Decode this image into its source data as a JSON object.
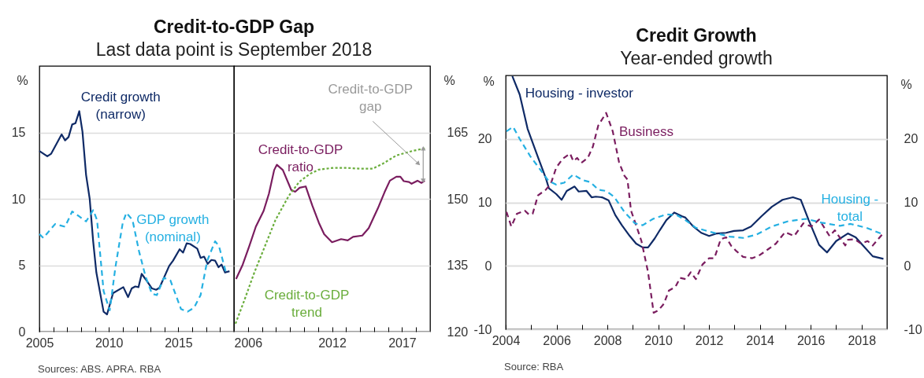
{
  "chart_data": [
    {
      "type": "line",
      "title": "Credit-to-GDP Gap",
      "subtitle": "Last data point is September 2018",
      "ylabel": "%",
      "xlim": [
        2005,
        2019
      ],
      "xticks": [
        2005,
        {
          "value": 2006,
          "label": null
        },
        {
          "value": 2007,
          "label": null
        },
        {
          "value": 2008,
          "label": null
        },
        {
          "value": 2009,
          "label": null
        },
        2010,
        {
          "value": 2011,
          "label": null
        },
        {
          "value": 2012,
          "label": null
        },
        {
          "value": 2013,
          "label": null
        },
        {
          "value": 2014,
          "label": null
        },
        2015,
        {
          "value": 2016,
          "label": null
        },
        {
          "value": 2017,
          "label": null
        },
        {
          "value": 2018,
          "label": null
        }
      ],
      "ylim": [
        0,
        20
      ],
      "yticks": [
        0,
        5,
        10,
        15
      ],
      "grid": "y",
      "annotations": [
        "Sources: ABS. APRA. RBA"
      ],
      "series": [
        {
          "name": "Credit growth (narrow)",
          "color": "#0f2a66",
          "line_style": "solid",
          "x": [
            2005.0,
            2005.57,
            2005.85,
            2006.6,
            2006.85,
            2007.1,
            2007.36,
            2007.6,
            2007.87,
            2008.1,
            2008.36,
            2008.62,
            2008.87,
            2009.1,
            2009.62,
            2009.87,
            2010.3,
            2011.04,
            2011.38,
            2011.64,
            2011.9,
            2012.13,
            2012.36,
            2012.64,
            2013.1,
            2013.4,
            2013.64,
            2014.34,
            2014.62,
            2015.09,
            2015.34,
            2015.6,
            2015.85,
            2016.36,
            2016.6,
            2016.85,
            2017.11,
            2017.38,
            2017.64,
            2017.89,
            2018.11,
            2018.36,
            2018.68
          ],
          "values": [
            13.6,
            13.2,
            13.4,
            14.85,
            14.4,
            14.65,
            15.6,
            15.7,
            16.6,
            15.05,
            11.8,
            10.0,
            6.8,
            4.45,
            1.5,
            1.3,
            2.9,
            3.35,
            2.6,
            3.25,
            3.4,
            3.35,
            4.35,
            3.95,
            3.25,
            3.15,
            3.3,
            4.95,
            5.35,
            6.2,
            5.95,
            6.65,
            6.6,
            6.25,
            5.55,
            5.65,
            5.1,
            5.4,
            5.35,
            4.85,
            5.05,
            4.45,
            4.55
          ]
        },
        {
          "name": "GDP growth (nominal)",
          "color": "#25b0e2",
          "line_style": "dashed",
          "x": [
            2005.0,
            2005.28,
            2006.13,
            2006.85,
            2007.36,
            2007.83,
            2008.36,
            2008.87,
            2009.15,
            2009.62,
            2010.06,
            2010.47,
            2011.0,
            2011.26,
            2011.7,
            2012.17,
            2012.64,
            2013.1,
            2013.45,
            2013.96,
            2014.43,
            2015.19,
            2015.66,
            2016.13,
            2016.6,
            2017.08,
            2017.64,
            2017.92,
            2018.4
          ],
          "values": [
            7.35,
            7.05,
            8.1,
            7.9,
            9.05,
            8.7,
            8.3,
            9.15,
            8.4,
            3.05,
            1.6,
            4.85,
            8.2,
            8.95,
            8.4,
            6.05,
            4.15,
            2.85,
            2.75,
            4.05,
            3.85,
            1.7,
            1.5,
            1.8,
            2.75,
            5.35,
            6.8,
            6.45,
            4.55
          ]
        }
      ]
    },
    {
      "type": "line",
      "y2label": "%",
      "xlim": [
        2005,
        2019
      ],
      "xticks": [
        2006,
        {
          "value": 2007,
          "label": null
        },
        {
          "value": 2008,
          "label": null
        },
        {
          "value": 2009,
          "label": null
        },
        {
          "value": 2010,
          "label": null
        },
        {
          "value": 2011,
          "label": null
        },
        2012,
        {
          "value": 2013,
          "label": null
        },
        {
          "value": 2014,
          "label": null
        },
        {
          "value": 2015,
          "label": null
        },
        {
          "value": 2016,
          "label": null
        },
        2017,
        {
          "value": 2018,
          "label": null
        }
      ],
      "y2lim": [
        120,
        180
      ],
      "y2ticks": [
        120,
        135,
        150,
        165
      ],
      "grid": "y",
      "annotations": [
        "Credit-to-GDP gap"
      ],
      "series": [
        {
          "name": "Credit-to-GDP ratio",
          "color": "#7a1d5f",
          "line_style": "solid",
          "axis": "y2",
          "x": [
            2005.15,
            2005.62,
            2006.09,
            2006.56,
            2007.12,
            2007.5,
            2007.87,
            2008.06,
            2008.49,
            2009.09,
            2009.37,
            2009.69,
            2010.12,
            2010.59,
            2011.06,
            2011.44,
            2012.0,
            2012.65,
            2013.12,
            2013.5,
            2014.16,
            2014.62,
            2015.28,
            2015.75,
            2016.13,
            2016.59,
            2016.88,
            2017.12,
            2017.5,
            2017.68,
            2018.1,
            2018.38,
            2018.62
          ],
          "values": [
            131.9,
            135.1,
            139.3,
            143.7,
            147.3,
            151.2,
            156.5,
            157.7,
            156.5,
            152.0,
            151.6,
            152.5,
            152.8,
            148.5,
            144.6,
            142.0,
            140.2,
            140.9,
            140.6,
            141.4,
            141.7,
            143.4,
            147.9,
            151.5,
            154.1,
            155.0,
            155.0,
            154.0,
            153.8,
            153.4,
            154.1,
            153.6,
            154.1
          ]
        },
        {
          "name": "Credit-to-GDP trend",
          "color": "#6aad3c",
          "line_style": "dotted",
          "axis": "y2",
          "x": [
            2005.11,
            2005.71,
            2006.46,
            2007.21,
            2007.96,
            2008.9,
            2009.65,
            2010.4,
            2011.06,
            2012.09,
            2013.03,
            2013.97,
            2014.9,
            2015.66,
            2016.59,
            2017.72,
            2018.62
          ],
          "values": [
            121.8,
            126.8,
            133.4,
            139.3,
            145.2,
            150.6,
            153.8,
            155.6,
            156.6,
            157.0,
            157.0,
            156.8,
            156.8,
            158.0,
            159.8,
            160.8,
            161.4
          ]
        }
      ]
    },
    {
      "type": "line",
      "title": "Credit Growth",
      "subtitle": "Year-ended growth",
      "ylabel": "%",
      "y2label": "%",
      "xlim": [
        2004,
        2019
      ],
      "xticks": [
        2004,
        {
          "value": 2005,
          "label": null
        },
        2006,
        {
          "value": 2007,
          "label": null
        },
        2008,
        {
          "value": 2009,
          "label": null
        },
        2010,
        {
          "value": 2011,
          "label": null
        },
        2012,
        {
          "value": 2013,
          "label": null
        },
        2014,
        {
          "value": 2015,
          "label": null
        },
        2016,
        {
          "value": 2017,
          "label": null
        },
        2018
      ],
      "ylim": [
        -10,
        30
      ],
      "yticks": [
        -10,
        0,
        10,
        20
      ],
      "y2lim": [
        -10,
        30
      ],
      "y2ticks": [
        -10,
        0,
        10,
        20
      ],
      "grid": "y",
      "annotations": [
        "Source: RBA"
      ],
      "series": [
        {
          "name": "Housing - investor",
          "color": "#0f2a66",
          "line_style": "solid",
          "x": [
            2004.26,
            2004.55,
            2004.86,
            2005.27,
            2005.58,
            2005.7,
            2005.99,
            2006.2,
            2006.4,
            2006.71,
            2006.87,
            2007.18,
            2007.38,
            2007.54,
            2007.79,
            2008.05,
            2008.31,
            2008.57,
            2008.88,
            2009.13,
            2009.39,
            2009.6,
            2009.86,
            2010.06,
            2010.32,
            2010.63,
            2010.94,
            2011.07,
            2011.38,
            2011.69,
            2012.0,
            2012.31,
            2012.67,
            2012.98,
            2013.34,
            2013.65,
            2014.06,
            2014.47,
            2014.89,
            2015.3,
            2015.61,
            2015.92,
            2016.33,
            2016.64,
            2017.0,
            2017.46,
            2017.77,
            2018.08,
            2018.44,
            2018.86
          ],
          "values": [
            29.9,
            27.0,
            21.6,
            17.1,
            13.8,
            12.2,
            11.3,
            10.4,
            11.8,
            12.5,
            11.7,
            11.8,
            10.8,
            10.9,
            10.8,
            10.3,
            8.0,
            6.4,
            4.7,
            3.5,
            2.9,
            2.9,
            4.3,
            5.6,
            7.2,
            8.4,
            7.8,
            7.6,
            6.2,
            5.2,
            4.7,
            5.1,
            5.2,
            5.5,
            5.6,
            6.2,
            7.8,
            9.3,
            10.4,
            10.8,
            10.4,
            7.2,
            3.3,
            2.1,
            3.9,
            5.1,
            4.5,
            3.1,
            1.5,
            1.1
          ]
        },
        {
          "name": "Business",
          "color": "#7a1d5f",
          "line_style": "dashed",
          "x": [
            2004.03,
            2004.22,
            2004.44,
            2004.75,
            2004.91,
            2005.06,
            2005.27,
            2005.58,
            2005.78,
            2005.99,
            2006.25,
            2006.53,
            2006.66,
            2006.81,
            2006.97,
            2007.23,
            2007.43,
            2007.64,
            2007.95,
            2008.21,
            2008.46,
            2008.67,
            2008.79,
            2008.93,
            2009.13,
            2009.34,
            2009.6,
            2009.82,
            2010.01,
            2010.22,
            2010.42,
            2010.68,
            2010.86,
            2011.09,
            2011.28,
            2011.48,
            2011.74,
            2012.0,
            2012.21,
            2012.46,
            2012.67,
            2012.88,
            2013.08,
            2013.34,
            2013.7,
            2013.96,
            2014.32,
            2014.63,
            2014.99,
            2015.35,
            2015.71,
            2016.02,
            2016.33,
            2016.74,
            2016.95,
            2017.36,
            2017.46,
            2017.72,
            2017.98,
            2018.24,
            2018.44,
            2018.8
          ],
          "values": [
            8.5,
            6.2,
            8.2,
            8.7,
            8.1,
            8.2,
            11.1,
            12.0,
            13.0,
            15.5,
            16.9,
            17.7,
            16.5,
            17.0,
            16.2,
            17.0,
            18.8,
            22.1,
            24.1,
            21.2,
            16.3,
            14.2,
            13.6,
            8.7,
            6.4,
            3.9,
            -1.0,
            -7.4,
            -7.0,
            -6.0,
            -3.9,
            -3.3,
            -1.9,
            -2.1,
            -1.0,
            -2.1,
            0.2,
            1.2,
            1.2,
            4.2,
            4.5,
            3.1,
            2.3,
            1.4,
            1.2,
            1.6,
            2.6,
            3.5,
            5.3,
            4.7,
            6.7,
            6.2,
            7.3,
            4.7,
            5.6,
            3.2,
            4.1,
            4.2,
            3.5,
            3.9,
            3.2,
            4.9
          ]
        },
        {
          "name": "Housing - total",
          "color": "#25b0e2",
          "line_style": "dashed",
          "x": [
            2004.03,
            2004.29,
            2004.55,
            2004.96,
            2005.37,
            2005.68,
            2005.99,
            2006.3,
            2006.66,
            2007.02,
            2007.33,
            2007.64,
            2007.95,
            2008.26,
            2008.67,
            2009.08,
            2009.39,
            2009.8,
            2010.32,
            2010.73,
            2011.07,
            2011.48,
            2012.0,
            2012.82,
            2013.34,
            2013.86,
            2014.47,
            2015.09,
            2015.81,
            2016.43,
            2017.15,
            2017.57,
            2018.19,
            2018.75
          ],
          "values": [
            21.2,
            21.9,
            20.0,
            17.3,
            15.1,
            13.4,
            12.8,
            13.1,
            14.4,
            13.5,
            13.2,
            12.0,
            11.8,
            10.9,
            8.5,
            6.7,
            6.4,
            7.4,
            8.1,
            8.0,
            7.2,
            6.0,
            5.4,
            4.6,
            4.4,
            4.9,
            6.2,
            7.0,
            7.4,
            6.8,
            6.3,
            6.6,
            6.0,
            5.1
          ]
        }
      ]
    }
  ]
}
